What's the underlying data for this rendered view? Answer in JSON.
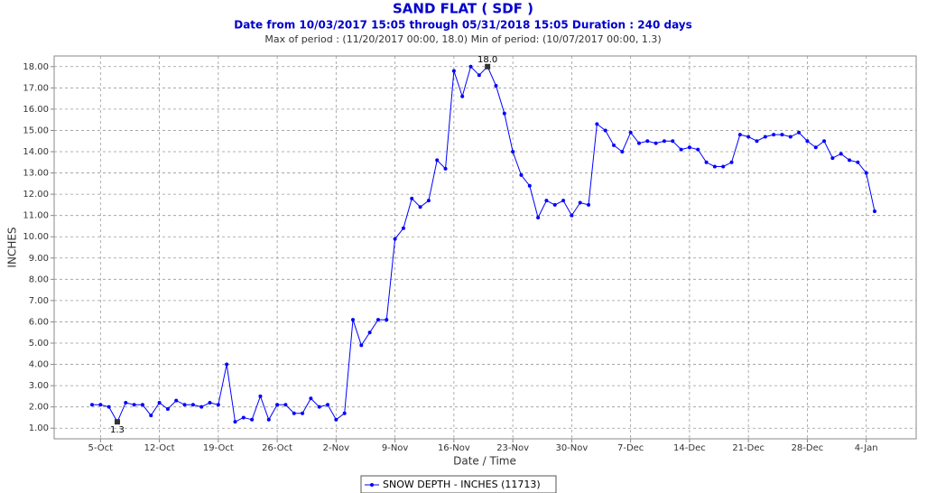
{
  "chart_data": {
    "type": "line",
    "title": "SAND FLAT ( SDF )",
    "subtitle": "Date from 10/03/2017 15:05 through 05/31/2018 15:05 Duration : 240 days",
    "period_note": "Max of period : (11/20/2017 00:00, 18.0)  Min of period: (10/07/2017 00:00,  1.3)",
    "x_label": "Date / Time",
    "y_label": "INCHES",
    "categories": [
      null,
      "5-Oct",
      null,
      null,
      null,
      null,
      null,
      null,
      "12-Oct",
      null,
      null,
      null,
      null,
      null,
      null,
      "19-Oct",
      null,
      null,
      null,
      null,
      null,
      null,
      "26-Oct",
      null,
      null,
      null,
      null,
      null,
      null,
      "2-Nov",
      null,
      null,
      null,
      null,
      null,
      null,
      "9-Nov",
      null,
      null,
      null,
      null,
      null,
      null,
      "16-Nov",
      null,
      null,
      null,
      null,
      null,
      null,
      "23-Nov",
      null,
      null,
      null,
      null,
      null,
      null,
      "30-Nov",
      null,
      null,
      null,
      null,
      null,
      null,
      "7-Dec",
      null,
      null,
      null,
      null,
      null,
      null,
      "14-Dec",
      null,
      null,
      null,
      null,
      null,
      null,
      "21-Dec",
      null,
      null,
      null,
      null,
      null,
      null,
      "28-Dec",
      null,
      null,
      null,
      null,
      null,
      null,
      "4-Jan",
      null
    ],
    "series": [
      {
        "name": "SNOW DEPTH - INCHES (11713)",
        "color": "#0000ff",
        "values": [
          2.1,
          2.1,
          2.0,
          1.3,
          2.2,
          2.1,
          2.1,
          1.6,
          2.2,
          1.9,
          2.3,
          2.1,
          2.1,
          2.0,
          2.2,
          2.1,
          4.0,
          1.3,
          1.5,
          1.4,
          2.5,
          1.4,
          2.1,
          2.1,
          1.7,
          1.7,
          2.4,
          2.0,
          2.1,
          1.4,
          1.7,
          6.1,
          4.9,
          5.5,
          6.1,
          6.1,
          9.9,
          10.4,
          11.8,
          11.4,
          11.7,
          13.6,
          13.2,
          17.8,
          16.6,
          18.0,
          17.6,
          18.0,
          17.1,
          15.8,
          14.0,
          12.9,
          12.4,
          10.9,
          11.7,
          11.5,
          11.7,
          11.0,
          11.6,
          11.5,
          15.3,
          15.0,
          14.3,
          14.0,
          14.9,
          14.4,
          14.5,
          14.4,
          14.5,
          14.5,
          14.1,
          14.2,
          14.1,
          13.5,
          13.3,
          13.3,
          13.5,
          14.8,
          14.7,
          14.5,
          14.7,
          14.8,
          14.8,
          14.7,
          14.9,
          14.5,
          14.2,
          14.5,
          13.7,
          13.9,
          13.6,
          13.5,
          13.0,
          11.2
        ],
        "value_labels": [
          null,
          null,
          null,
          "1.3",
          null,
          null,
          null,
          null,
          null,
          null,
          null,
          null,
          null,
          null,
          null,
          null,
          null,
          null,
          null,
          null,
          null,
          null,
          null,
          null,
          null,
          null,
          null,
          null,
          null,
          null,
          null,
          null,
          null,
          null,
          null,
          null,
          null,
          null,
          null,
          null,
          null,
          null,
          null,
          null,
          null,
          null,
          null,
          "18.0",
          null,
          null,
          null,
          null,
          null,
          null,
          null,
          null,
          null,
          null,
          null,
          null,
          null,
          null,
          null,
          null,
          null,
          null,
          null,
          null,
          null,
          null,
          null,
          null,
          null,
          null,
          null,
          null,
          null,
          null,
          null,
          null,
          null,
          null,
          null,
          null,
          null,
          null,
          null,
          null,
          null,
          null,
          null,
          null,
          null,
          null
        ]
      }
    ],
    "ylim": [
      0.5,
      18.5
    ],
    "yticks": [
      {
        "value": 1,
        "label": "1.00"
      },
      {
        "value": 2,
        "label": "2.00"
      },
      {
        "value": 3,
        "label": "3.00"
      },
      {
        "value": 4,
        "label": "4.00"
      },
      {
        "value": 5,
        "label": "5.00"
      },
      {
        "value": 6,
        "label": "6.00"
      },
      {
        "value": 7,
        "label": "7.00"
      },
      {
        "value": 8,
        "label": "8.00"
      },
      {
        "value": 9,
        "label": "9.00"
      },
      {
        "value": 10,
        "label": "10.00"
      },
      {
        "value": 11,
        "label": "11.00"
      },
      {
        "value": 12,
        "label": "12.00"
      },
      {
        "value": 13,
        "label": "13.00"
      },
      {
        "value": 14,
        "label": "14.00"
      },
      {
        "value": 15,
        "label": "15.00"
      },
      {
        "value": 16,
        "label": "16.00"
      },
      {
        "value": 17,
        "label": "17.00"
      },
      {
        "value": 18,
        "label": "18.00"
      }
    ],
    "grid": true,
    "legend": "bottom"
  }
}
